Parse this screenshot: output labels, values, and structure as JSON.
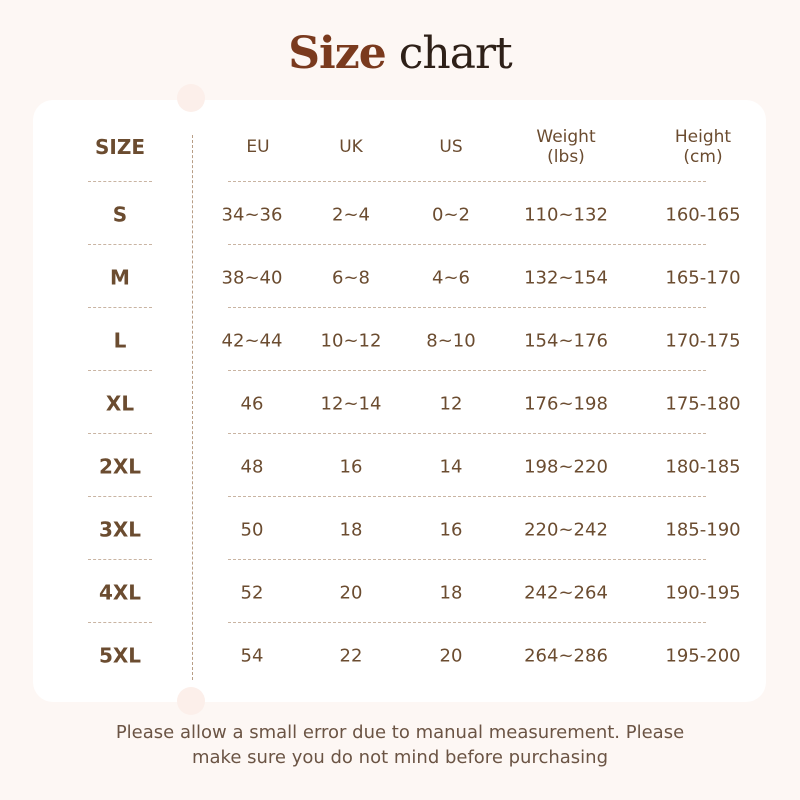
{
  "title": {
    "part1": "Size",
    "part2": "chart"
  },
  "headers": [
    "SIZE",
    "EU",
    "UK",
    "US",
    "Weight\n(lbs)",
    "Height\n(cm)"
  ],
  "rows": [
    [
      "S",
      "34~36",
      "2~4",
      "0~2",
      "110~132",
      "160-165"
    ],
    [
      "M",
      "38~40",
      "6~8",
      "4~6",
      "132~154",
      "165-170"
    ],
    [
      "L",
      "42~44",
      "10~12",
      "8~10",
      "154~176",
      "170-175"
    ],
    [
      "XL",
      "46",
      "12~14",
      "12",
      "176~198",
      "175-180"
    ],
    [
      "2XL",
      "48",
      "16",
      "14",
      "198~220",
      "180-185"
    ],
    [
      "3XL",
      "50",
      "18",
      "16",
      "220~242",
      "185-190"
    ],
    [
      "4XL",
      "52",
      "20",
      "18",
      "242~264",
      "190-195"
    ],
    [
      "5XL",
      "54",
      "22",
      "20",
      "264~286",
      "195-200"
    ]
  ],
  "note": "Please allow a small error due to manual measurement. Please make sure you do not mind before purchasing",
  "colors": {
    "text": "#6b4c30",
    "title_accent": "#7a3a1e",
    "title_dark": "#2e2018",
    "background": "#fdf7f4"
  }
}
